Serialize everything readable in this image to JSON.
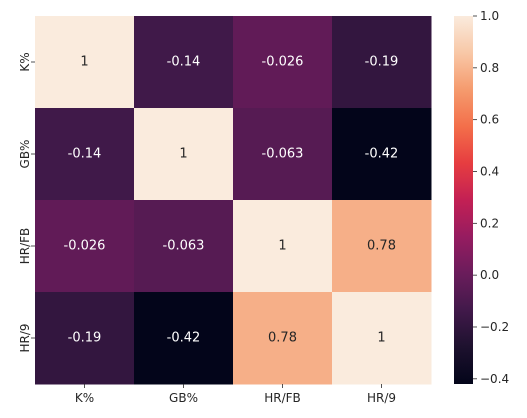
{
  "chart_data": {
    "type": "heatmap",
    "title": "",
    "xlabel": "",
    "ylabel": "",
    "x_categories": [
      "K%",
      "GB%",
      "HR/FB",
      "HR/9"
    ],
    "y_categories": [
      "K%",
      "GB%",
      "HR/FB",
      "HR/9"
    ],
    "values": [
      [
        1,
        -0.14,
        -0.026,
        -0.19
      ],
      [
        -0.14,
        1,
        -0.063,
        -0.42
      ],
      [
        -0.026,
        -0.063,
        1,
        0.78
      ],
      [
        -0.19,
        -0.42,
        0.78,
        1
      ]
    ],
    "cell_labels": [
      [
        "1",
        "-0.14",
        "-0.026",
        "-0.19"
      ],
      [
        "-0.14",
        "1",
        "-0.063",
        "-0.42"
      ],
      [
        "-0.026",
        "-0.063",
        "1",
        "0.78"
      ],
      [
        "-0.19",
        "-0.42",
        "0.78",
        "1"
      ]
    ],
    "colormap": "rocket",
    "colorbar": {
      "vmin": -0.42,
      "vmax": 1.0,
      "ticks": [
        -0.4,
        -0.2,
        0.0,
        0.2,
        0.4,
        0.6,
        0.8,
        1.0
      ],
      "tick_labels": [
        "−0.4",
        "−0.2",
        "0.0",
        "0.2",
        "0.4",
        "0.6",
        "0.8",
        "1.0"
      ]
    },
    "grid": false,
    "legend": "colorbar-right"
  }
}
